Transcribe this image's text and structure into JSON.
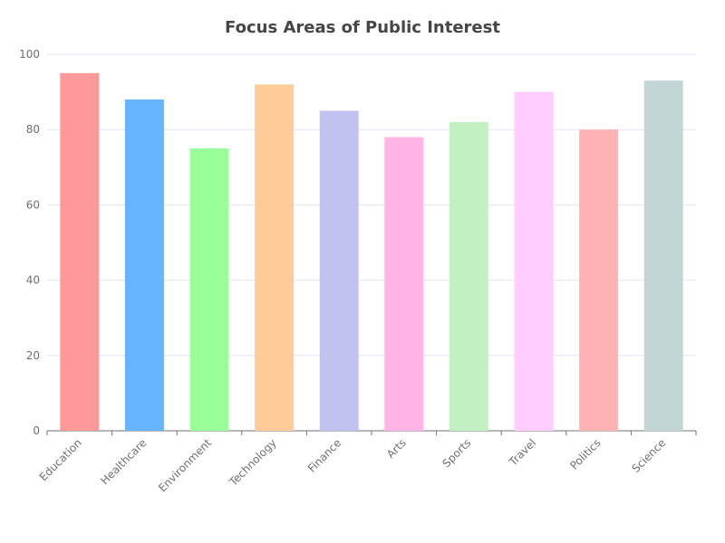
{
  "chart_data": {
    "type": "bar",
    "title": "Focus Areas of Public Interest",
    "xlabel": "",
    "ylabel": "",
    "categories": [
      "Education",
      "Healthcare",
      "Environment",
      "Technology",
      "Finance",
      "Arts",
      "Sports",
      "Travel",
      "Politics",
      "Science"
    ],
    "values": [
      95,
      88,
      75,
      92,
      85,
      78,
      82,
      90,
      80,
      93
    ],
    "colors": [
      "#ff9999",
      "#66b3ff",
      "#99ff99",
      "#ffcc99",
      "#c2c2f0",
      "#ffb3e6",
      "#c2f0c2",
      "#ffccff",
      "#ffb3b3",
      "#c2d6d6"
    ],
    "ylim": [
      0,
      100
    ],
    "yticks": [
      0,
      20,
      40,
      60,
      80,
      100
    ],
    "grid": true,
    "legend": "none"
  }
}
